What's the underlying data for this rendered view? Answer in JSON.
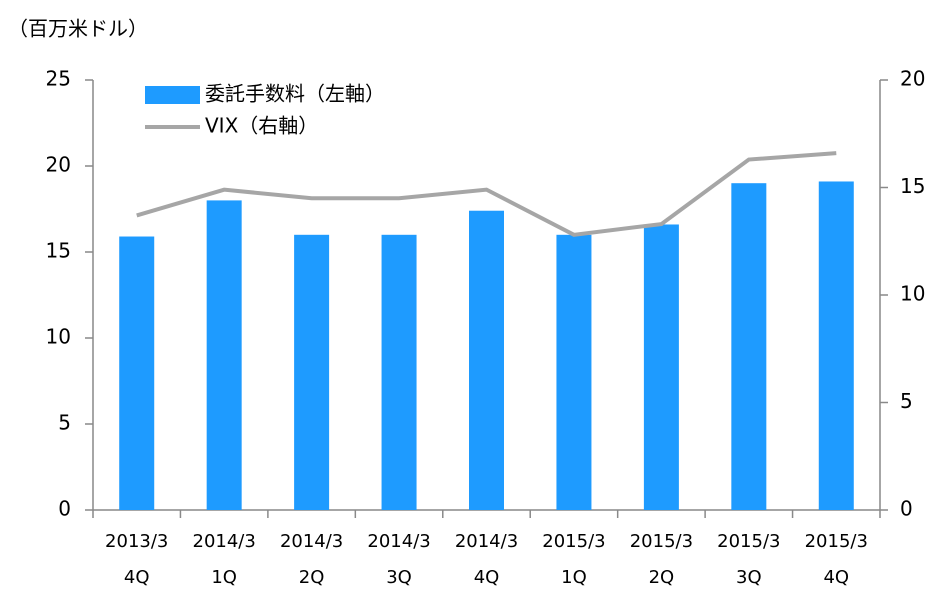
{
  "chart_data": {
    "type": "bar",
    "title": "（百万米ドル）",
    "categories": [
      [
        "2013/3",
        "4Q"
      ],
      [
        "2014/3",
        "1Q"
      ],
      [
        "2014/3",
        "2Q"
      ],
      [
        "2014/3",
        "3Q"
      ],
      [
        "2014/3",
        "4Q"
      ],
      [
        "2015/3",
        "1Q"
      ],
      [
        "2015/3",
        "2Q"
      ],
      [
        "2015/3",
        "3Q"
      ],
      [
        "2015/3",
        "4Q"
      ]
    ],
    "series": [
      {
        "name": "委託手数料（左軸）",
        "type": "bar",
        "color": "#1e9bff",
        "values": [
          15.9,
          18.0,
          16.0,
          16.0,
          17.4,
          16.0,
          16.6,
          19.0,
          19.1
        ]
      },
      {
        "name": "VIX（右軸）",
        "type": "line",
        "axis": "y2",
        "color": "#a6a6a6",
        "values": [
          13.7,
          14.9,
          14.5,
          14.5,
          14.9,
          12.8,
          13.3,
          16.3,
          16.6
        ]
      }
    ],
    "ylim": [
      0,
      25
    ],
    "yticks": [
      0,
      5,
      10,
      15,
      20,
      25
    ],
    "y2lim": [
      0,
      20
    ],
    "y2ticks": [
      0,
      5,
      10,
      15,
      20
    ],
    "legend": "top-left"
  }
}
